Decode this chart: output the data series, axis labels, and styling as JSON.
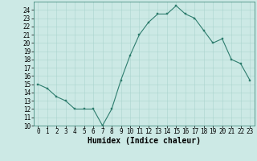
{
  "x": [
    0,
    1,
    2,
    3,
    4,
    5,
    6,
    7,
    8,
    9,
    10,
    11,
    12,
    13,
    14,
    15,
    16,
    17,
    18,
    19,
    20,
    21,
    22,
    23
  ],
  "y": [
    15.0,
    14.5,
    13.5,
    13.0,
    12.0,
    12.0,
    12.0,
    10.0,
    12.0,
    15.5,
    18.5,
    21.0,
    22.5,
    23.5,
    23.5,
    24.5,
    23.5,
    23.0,
    21.5,
    20.0,
    20.5,
    18.0,
    17.5,
    15.5
  ],
  "xlabel": "Humidex (Indice chaleur)",
  "ylim": [
    10,
    25
  ],
  "xlim": [
    -0.5,
    23.5
  ],
  "yticks": [
    10,
    11,
    12,
    13,
    14,
    15,
    16,
    17,
    18,
    19,
    20,
    21,
    22,
    23,
    24
  ],
  "xticks": [
    0,
    1,
    2,
    3,
    4,
    5,
    6,
    7,
    8,
    9,
    10,
    11,
    12,
    13,
    14,
    15,
    16,
    17,
    18,
    19,
    20,
    21,
    22,
    23
  ],
  "line_color": "#2e7d6e",
  "marker": "s",
  "marker_size": 2.0,
  "bg_color": "#cce9e5",
  "grid_color": "#aad4cf",
  "tick_label_fontsize": 5.5,
  "xlabel_fontsize": 7.0,
  "spine_color": "#2e7d6e"
}
